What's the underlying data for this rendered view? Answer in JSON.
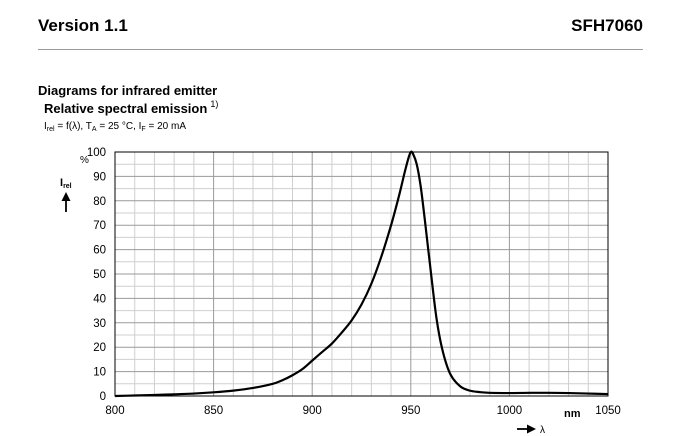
{
  "header": {
    "version": "Version 1.1",
    "part": "SFH7060"
  },
  "section_title": "Diagrams for infrared emitter",
  "chart_title": {
    "text": "Relative spectral emission",
    "footnote": "1)"
  },
  "conditions": {
    "irel": "I",
    "irel_sub": "rel",
    "func": " = f(λ), T",
    "ta_sub": "A",
    "ta_val": " = 25 °C, I",
    "if_sub": "F",
    "if_val": " = 20 mA"
  },
  "chart_data": {
    "type": "line",
    "xlabel": "λ",
    "x_unit": "nm",
    "ylabel": "I",
    "ylabel_sub": "rel",
    "y_unit": "%",
    "xlim": [
      800,
      1050
    ],
    "ylim": [
      0,
      100
    ],
    "x_ticks": [
      800,
      850,
      900,
      950,
      1000,
      1050
    ],
    "y_ticks": [
      0,
      10,
      20,
      30,
      40,
      50,
      60,
      70,
      80,
      90,
      100
    ],
    "x_minor_step": 10,
    "y_minor_step": 5,
    "grid": true,
    "series": [
      {
        "color": "#000000",
        "x": [
          800,
          810,
          820,
          830,
          840,
          850,
          860,
          870,
          880,
          885,
          890,
          895,
          900,
          905,
          910,
          915,
          920,
          925,
          930,
          935,
          940,
          944,
          947,
          949,
          950,
          951,
          953,
          955,
          957,
          960,
          963,
          966,
          970,
          975,
          980,
          985,
          990,
          1000,
          1010,
          1020,
          1030,
          1040,
          1050
        ],
        "y": [
          0,
          0.2,
          0.4,
          0.7,
          1.0,
          1.5,
          2.2,
          3.3,
          5.0,
          6.5,
          8.5,
          11,
          14.5,
          18,
          21.5,
          26,
          31,
          37.5,
          46,
          57,
          70,
          82,
          92,
          98,
          100,
          99.5,
          95,
          86,
          73,
          52,
          32,
          19,
          9,
          4,
          2.2,
          1.6,
          1.3,
          1.2,
          1.3,
          1.3,
          1.2,
          1.0,
          0.8
        ]
      }
    ]
  }
}
